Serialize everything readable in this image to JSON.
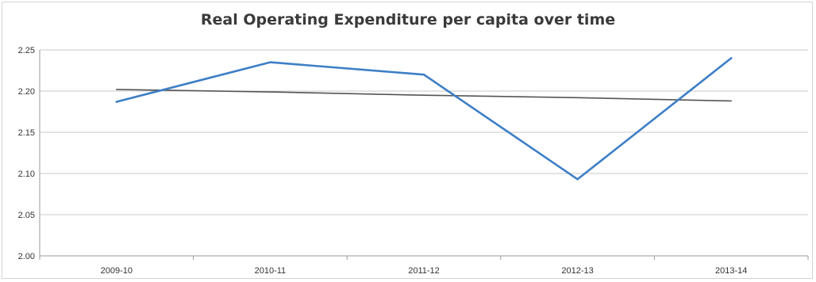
{
  "chart_data": {
    "type": "line",
    "title": "Real Operating Expenditure per capita over time",
    "xlabel": "",
    "ylabel": "",
    "categories": [
      "2009-10",
      "2010-11",
      "2011-12",
      "2012-13",
      "2013-14"
    ],
    "series": [
      {
        "values": [
          2.187,
          2.235,
          2.22,
          2.093,
          2.24
        ],
        "color": "#3d7fc6"
      },
      {
        "values": [
          2.202,
          2.199,
          2.195,
          2.192,
          2.188
        ],
        "color": "#555555",
        "role": "trendline"
      }
    ],
    "ylim": [
      2.0,
      2.25
    ],
    "yticks": [
      "2.00",
      "2.05",
      "2.10",
      "2.15",
      "2.20",
      "2.25"
    ],
    "grid": true,
    "legend": "none"
  }
}
